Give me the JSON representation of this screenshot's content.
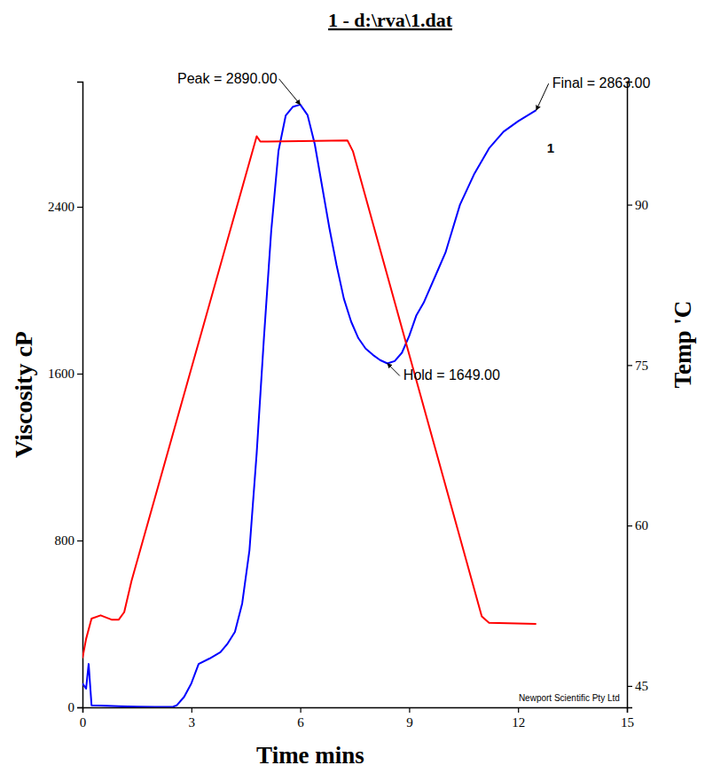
{
  "chart_data": {
    "type": "line",
    "title": "1 - d:\\rva\\1.dat",
    "x_label": "Time mins",
    "y_label": "Viscosity cP",
    "y2_label": "Temp 'C",
    "xlim": [
      0,
      15
    ],
    "xticks": [
      0,
      3,
      6,
      9,
      12,
      15
    ],
    "ylim": [
      0,
      3000
    ],
    "yticks": [
      0,
      800,
      1600,
      2400
    ],
    "y2lim": [
      43,
      101.5
    ],
    "y2ticks": [
      45,
      60,
      75,
      90
    ],
    "grid": false,
    "series": [
      {
        "color": "#0000ff",
        "axis": "y",
        "x": [
          0,
          0.1,
          0.17,
          0.25,
          0.5,
          1,
          1.5,
          2,
          2.5,
          2.6,
          2.8,
          3.0,
          3.2,
          3.5,
          3.8,
          4.0,
          4.2,
          4.4,
          4.6,
          4.8,
          5.0,
          5.2,
          5.4,
          5.6,
          5.8,
          6.0,
          6.2,
          6.4,
          6.6,
          6.8,
          7.0,
          7.2,
          7.4,
          7.6,
          7.8,
          8.0,
          8.2,
          8.4,
          8.6,
          8.8,
          9.0,
          9.2,
          9.4,
          9.8,
          10.0,
          10.4,
          10.8,
          11.2,
          11.6,
          12.0,
          12.5
        ],
        "values": [
          115,
          90,
          208,
          10,
          8,
          5,
          3,
          2,
          3,
          10,
          50,
          115,
          208,
          234,
          264,
          306,
          362,
          498,
          753,
          1221,
          1774,
          2285,
          2668,
          2838,
          2880,
          2890,
          2840,
          2700,
          2500,
          2300,
          2120,
          1960,
          1850,
          1770,
          1720,
          1690,
          1665,
          1649,
          1660,
          1700,
          1780,
          1880,
          1940,
          2100,
          2180,
          2410,
          2560,
          2680,
          2760,
          2810,
          2863
        ]
      },
      {
        "color": "#ff0000",
        "axis": "y2",
        "x": [
          0,
          0.1,
          0.25,
          0.5,
          0.8,
          1.0,
          1.15,
          1.35,
          4.8,
          4.9,
          5.1,
          7.3,
          7.45,
          11.0,
          11.2,
          12.5
        ],
        "values": [
          47.6,
          49.4,
          51.3,
          51.6,
          51.2,
          51.2,
          51.9,
          54.8,
          96.4,
          95.9,
          95.9,
          96.0,
          95.0,
          51.5,
          50.9,
          50.8
        ]
      }
    ],
    "annotations": [
      {
        "text": "Peak = 2890.00",
        "x": 6.0,
        "y": 2890
      },
      {
        "text": "Hold = 1649.00",
        "x": 8.4,
        "y": 1649
      },
      {
        "text": "Final = 2863.00",
        "x": 12.5,
        "y": 2863
      },
      {
        "text": "1",
        "x": 12.9,
        "y": 2660
      },
      {
        "text": "Newport Scientific Pty Ltd",
        "x": 14.8,
        "y": 30
      }
    ]
  }
}
